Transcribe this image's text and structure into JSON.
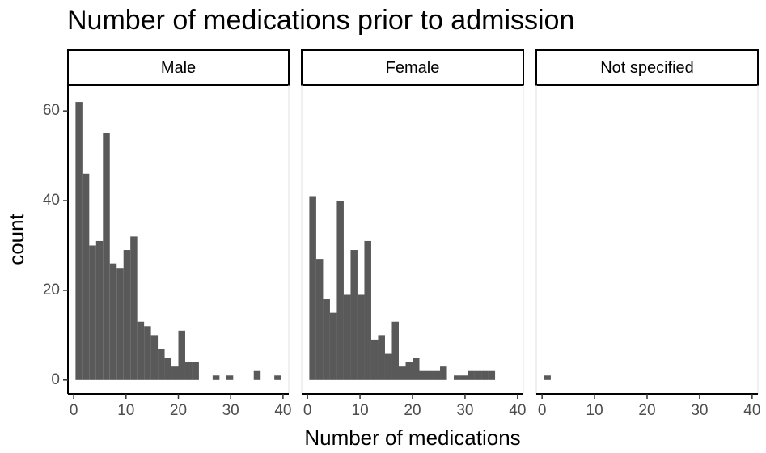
{
  "title": "Number of medications prior to admission",
  "x_label": "Number of medications",
  "y_label": "count",
  "chart_data": [
    {
      "type": "histogram",
      "title": "Male",
      "color": "#595959",
      "bins": [
        0.35,
        1.66,
        2.97,
        4.28,
        5.59,
        6.9,
        8.21,
        9.52,
        10.83,
        12.14,
        13.45,
        14.76,
        16.07,
        17.38,
        18.69,
        20,
        21.31,
        22.62,
        23.93,
        25.24,
        26.55,
        27.86,
        29.17,
        30.48,
        31.79,
        33.1,
        34.41,
        35.72,
        37.03,
        38.34,
        39.65
      ],
      "values": [
        62,
        46,
        30,
        31,
        55,
        26,
        25,
        29,
        32,
        13,
        12,
        10,
        7,
        5,
        3,
        11,
        4,
        4,
        0,
        0,
        1,
        0,
        1,
        0,
        0,
        0,
        2,
        0,
        0,
        1
      ],
      "xlim": [
        -1.1,
        41.1
      ],
      "ylim": [
        -3.1,
        65.8
      ],
      "xticks": [
        0,
        10,
        20,
        30,
        40
      ],
      "yticks": [
        0,
        20,
        40,
        60
      ]
    },
    {
      "type": "histogram",
      "title": "Female",
      "color": "#595959",
      "bins": [
        0.35,
        1.66,
        2.97,
        4.28,
        5.59,
        6.9,
        8.21,
        9.52,
        10.83,
        12.14,
        13.45,
        14.76,
        16.07,
        17.38,
        18.69,
        20,
        21.31,
        22.62,
        23.93,
        25.24,
        26.55,
        27.86,
        29.17,
        30.48,
        31.79,
        33.1,
        34.41,
        35.72,
        37.03,
        38.34,
        39.65
      ],
      "values": [
        41,
        27,
        18,
        15,
        40,
        19,
        29,
        19,
        31,
        9,
        10,
        6,
        13,
        3,
        4,
        5,
        2,
        2,
        2,
        3,
        0,
        1,
        1,
        2,
        2,
        2,
        2,
        0,
        0,
        0
      ],
      "xlim": [
        -1.1,
        41.1
      ],
      "ylim": [
        -3.1,
        65.8
      ],
      "xticks": [
        0,
        10,
        20,
        30,
        40
      ]
    },
    {
      "type": "histogram",
      "title": "Not specified",
      "color": "#595959",
      "bins": [
        0.35,
        1.66,
        2.97,
        4.28,
        5.59,
        6.9,
        8.21,
        9.52,
        10.83,
        12.14,
        13.45,
        14.76,
        16.07,
        17.38,
        18.69,
        20,
        21.31,
        22.62,
        23.93,
        25.24,
        26.55,
        27.86,
        29.17,
        30.48,
        31.79,
        33.1,
        34.41,
        35.72,
        37.03,
        38.34,
        39.65
      ],
      "values": [
        1,
        0,
        0,
        0,
        0,
        0,
        0,
        0,
        0,
        0,
        0,
        0,
        0,
        0,
        0,
        0,
        0,
        0,
        0,
        0,
        0,
        0,
        0,
        0,
        0,
        0,
        0,
        0,
        0,
        0
      ],
      "xlim": [
        -1.1,
        41.1
      ],
      "ylim": [
        -3.1,
        65.8
      ],
      "xticks": [
        0,
        10,
        20,
        30,
        40
      ]
    }
  ]
}
